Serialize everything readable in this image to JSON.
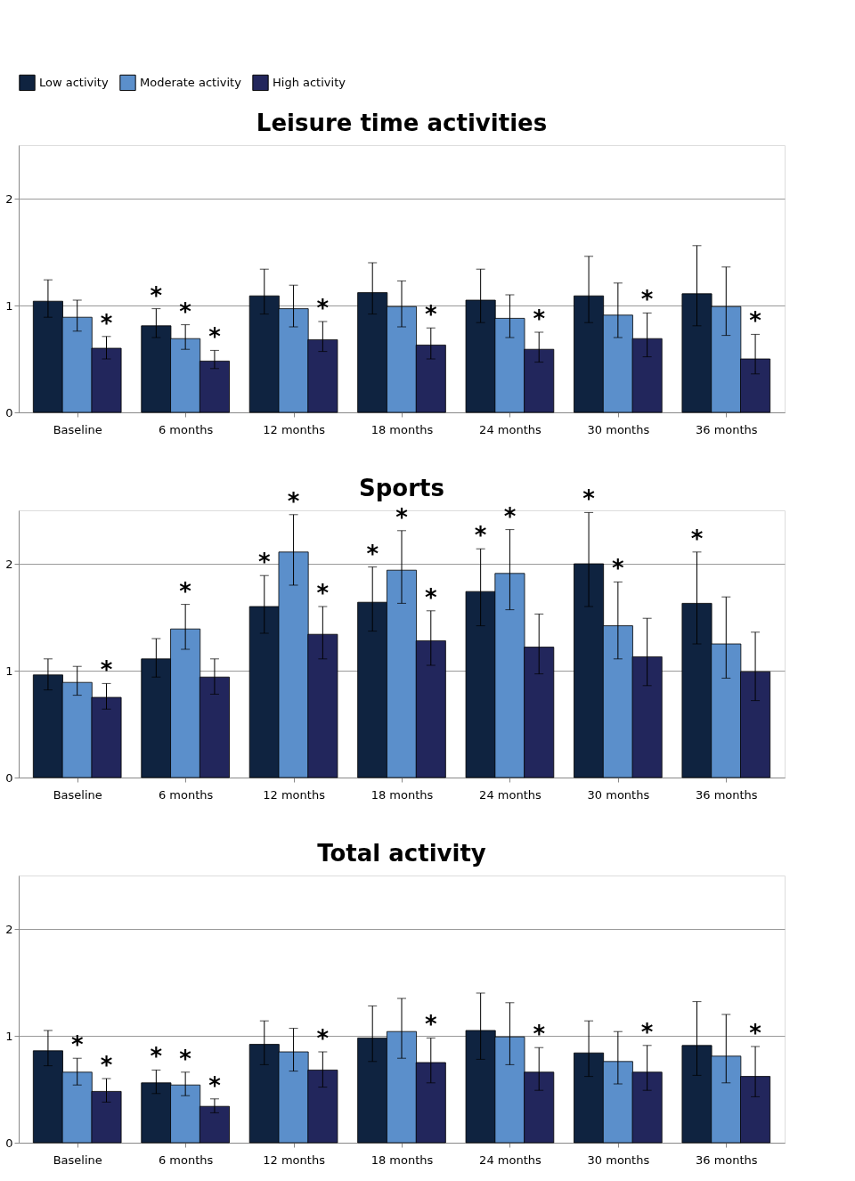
{
  "chart_data": [
    {
      "type": "bar",
      "title": "Leisure time activities",
      "legend": "top left",
      "grid": "y",
      "ylim": [
        0,
        2.5
      ],
      "yticks": [
        0,
        1,
        2
      ],
      "categories": [
        "Baseline",
        "6 months",
        "12 months",
        "18 months",
        "24 months",
        "30 months",
        "36 months"
      ],
      "series": [
        {
          "name": "Low activity",
          "color": "#0f2340",
          "values": [
            1.04,
            0.81,
            1.09,
            1.12,
            1.05,
            1.09,
            1.11
          ],
          "errors": [
            [
              0.89,
              1.24
            ],
            [
              0.7,
              0.97
            ],
            [
              0.92,
              1.34
            ],
            [
              0.92,
              1.4
            ],
            [
              0.84,
              1.34
            ],
            [
              0.84,
              1.46
            ],
            [
              0.81,
              1.56
            ]
          ],
          "value_labels": [
            null,
            "*",
            null,
            null,
            null,
            null,
            null
          ]
        },
        {
          "name": "Moderate activity",
          "color": "#5b8fcb",
          "values": [
            0.89,
            0.69,
            0.97,
            0.99,
            0.88,
            0.91,
            0.99
          ],
          "errors": [
            [
              0.76,
              1.05
            ],
            [
              0.59,
              0.82
            ],
            [
              0.8,
              1.19
            ],
            [
              0.8,
              1.23
            ],
            [
              0.7,
              1.1
            ],
            [
              0.7,
              1.21
            ],
            [
              0.72,
              1.36
            ]
          ],
          "value_labels": [
            null,
            "*",
            null,
            null,
            null,
            null,
            null
          ]
        },
        {
          "name": "High activity",
          "color": "#22265c",
          "values": [
            0.6,
            0.48,
            0.68,
            0.63,
            0.59,
            0.69,
            0.5
          ],
          "errors": [
            [
              0.5,
              0.71
            ],
            [
              0.41,
              0.58
            ],
            [
              0.57,
              0.85
            ],
            [
              0.5,
              0.79
            ],
            [
              0.47,
              0.75
            ],
            [
              0.52,
              0.93
            ],
            [
              0.36,
              0.73
            ]
          ],
          "value_labels": [
            "*",
            "*",
            "*",
            "*",
            "*",
            "*",
            "*"
          ]
        }
      ]
    },
    {
      "type": "bar",
      "title": "Sports",
      "grid": "y",
      "ylim": [
        0,
        2.5
      ],
      "yticks": [
        0,
        1,
        2
      ],
      "categories": [
        "Baseline",
        "6 months",
        "12 months",
        "18 months",
        "24 months",
        "30 months",
        "36 months"
      ],
      "series": [
        {
          "color": "#0f2340",
          "values": [
            0.96,
            1.11,
            1.6,
            1.64,
            1.74,
            2.0,
            1.63
          ],
          "errors": [
            [
              0.82,
              1.11
            ],
            [
              0.94,
              1.3
            ],
            [
              1.35,
              1.89
            ],
            [
              1.37,
              1.97
            ],
            [
              1.42,
              2.14
            ],
            [
              1.6,
              2.48
            ],
            [
              1.25,
              2.11
            ]
          ],
          "value_labels": [
            null,
            null,
            "*",
            "*",
            "*",
            "*",
            "*"
          ]
        },
        {
          "color": "#5b8fcb",
          "values": [
            0.89,
            1.39,
            2.11,
            1.94,
            1.91,
            1.42,
            1.25
          ],
          "errors": [
            [
              0.77,
              1.04
            ],
            [
              1.2,
              1.62
            ],
            [
              1.8,
              2.46
            ],
            [
              1.63,
              2.31
            ],
            [
              1.57,
              2.32
            ],
            [
              1.11,
              1.83
            ],
            [
              0.93,
              1.69
            ]
          ],
          "value_labels": [
            null,
            "*",
            "*",
            "*",
            "*",
            "*",
            null
          ]
        },
        {
          "color": "#22265c",
          "values": [
            0.75,
            0.94,
            1.34,
            1.28,
            1.22,
            1.13,
            0.99
          ],
          "errors": [
            [
              0.64,
              0.88
            ],
            [
              0.78,
              1.11
            ],
            [
              1.11,
              1.6
            ],
            [
              1.05,
              1.56
            ],
            [
              0.97,
              1.53
            ],
            [
              0.86,
              1.49
            ],
            [
              0.72,
              1.36
            ]
          ],
          "value_labels": [
            "*",
            null,
            "*",
            "*",
            null,
            null,
            null
          ]
        }
      ]
    },
    {
      "type": "bar",
      "title": "Total activity",
      "grid": "y",
      "ylim": [
        0,
        2.5
      ],
      "yticks": [
        0,
        1,
        2
      ],
      "categories": [
        "Baseline",
        "6 months",
        "12 months",
        "18 months",
        "24 months",
        "30 months",
        "36 months"
      ],
      "series": [
        {
          "color": "#0f2340",
          "values": [
            0.86,
            0.56,
            0.92,
            0.98,
            1.05,
            0.84,
            0.91
          ],
          "errors": [
            [
              0.72,
              1.05
            ],
            [
              0.46,
              0.68
            ],
            [
              0.73,
              1.14
            ],
            [
              0.76,
              1.28
            ],
            [
              0.78,
              1.4
            ],
            [
              0.62,
              1.14
            ],
            [
              0.63,
              1.32
            ]
          ],
          "value_labels": [
            null,
            "*",
            null,
            null,
            null,
            null,
            null
          ]
        },
        {
          "color": "#5b8fcb",
          "values": [
            0.66,
            0.54,
            0.85,
            1.04,
            0.99,
            0.76,
            0.81
          ],
          "errors": [
            [
              0.54,
              0.79
            ],
            [
              0.44,
              0.66
            ],
            [
              0.67,
              1.07
            ],
            [
              0.79,
              1.35
            ],
            [
              0.73,
              1.31
            ],
            [
              0.55,
              1.04
            ],
            [
              0.56,
              1.2
            ]
          ],
          "value_labels": [
            "*",
            "*",
            null,
            null,
            null,
            null,
            null
          ]
        },
        {
          "color": "#22265c",
          "values": [
            0.48,
            0.34,
            0.68,
            0.75,
            0.66,
            0.66,
            0.62
          ],
          "errors": [
            [
              0.38,
              0.6
            ],
            [
              0.28,
              0.41
            ],
            [
              0.52,
              0.85
            ],
            [
              0.56,
              0.98
            ],
            [
              0.49,
              0.89
            ],
            [
              0.49,
              0.91
            ],
            [
              0.43,
              0.9
            ]
          ],
          "value_labels": [
            "*",
            "*",
            "*",
            "*",
            "*",
            "*",
            "*"
          ]
        }
      ]
    }
  ]
}
